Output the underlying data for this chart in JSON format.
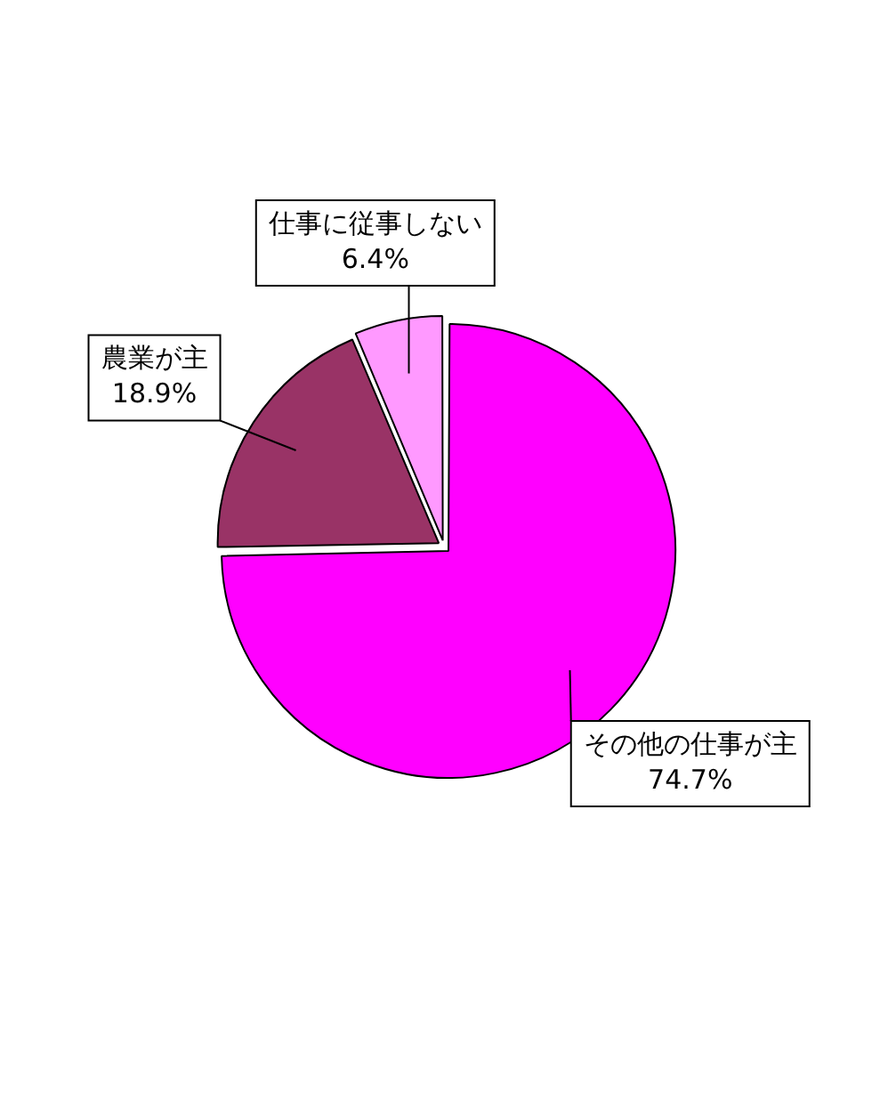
{
  "chart_data": {
    "type": "pie",
    "categories": [
      "仕事に従事しない",
      "その他の仕事が主",
      "農業が主"
    ],
    "values": [
      6.4,
      74.7,
      18.9
    ],
    "value_labels": [
      "6.4%",
      "74.7%",
      "18.9%"
    ],
    "colors": [
      "#ff99ff",
      "#ff00ff",
      "#993366"
    ],
    "legend": false
  }
}
